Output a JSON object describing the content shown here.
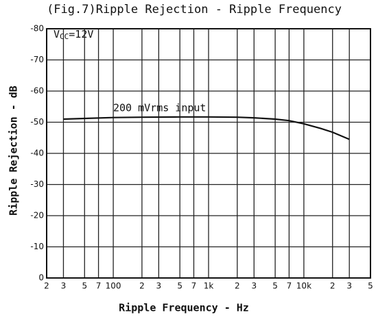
{
  "chart_data": {
    "type": "line",
    "title": "(Fig.7)Ripple Rejection - Ripple Frequency",
    "xlabel": "Ripple Frequency - Hz",
    "ylabel": "Ripple Rejection - dB",
    "vcc_annotation": {
      "main": "V",
      "sub": "CC",
      "rest": "=12V"
    },
    "series_annotation": "200 mVrms input",
    "x_scale": "log",
    "xlim": [
      20,
      50000
    ],
    "ylim": [
      0,
      -80
    ],
    "grid": true,
    "xticks": [
      {
        "value": 20,
        "label": "2"
      },
      {
        "value": 30,
        "label": "3"
      },
      {
        "value": 50,
        "label": "5"
      },
      {
        "value": 70,
        "label": "7"
      },
      100,
      {
        "value": 200,
        "label": "2"
      },
      {
        "value": 300,
        "label": "3"
      },
      {
        "value": 500,
        "label": "5"
      },
      {
        "value": 700,
        "label": "7"
      },
      {
        "value": 1000,
        "label": "1k"
      },
      {
        "value": 2000,
        "label": "2"
      },
      {
        "value": 3000,
        "label": "3"
      },
      {
        "value": 5000,
        "label": "5"
      },
      {
        "value": 7000,
        "label": "7"
      },
      {
        "value": 10000,
        "label": "10k"
      },
      {
        "value": 20000,
        "label": "2"
      },
      {
        "value": 30000,
        "label": "3"
      },
      {
        "value": 50000,
        "label": "5"
      }
    ],
    "yticks": [
      0,
      -10,
      -20,
      -30,
      -40,
      -50,
      -60,
      -70,
      -80
    ],
    "series": [
      {
        "name": "200 mVrms input",
        "color": "#111111",
        "x": [
          30,
          50,
          100,
          200,
          500,
          1000,
          2000,
          3000,
          5000,
          7000,
          10000,
          15000,
          20000,
          30000
        ],
        "values": [
          -51,
          -51.2,
          -51.5,
          -51.6,
          -51.7,
          -51.7,
          -51.6,
          -51.4,
          -51,
          -50.5,
          -49.5,
          -48,
          -46.8,
          -44.5
        ]
      }
    ]
  }
}
